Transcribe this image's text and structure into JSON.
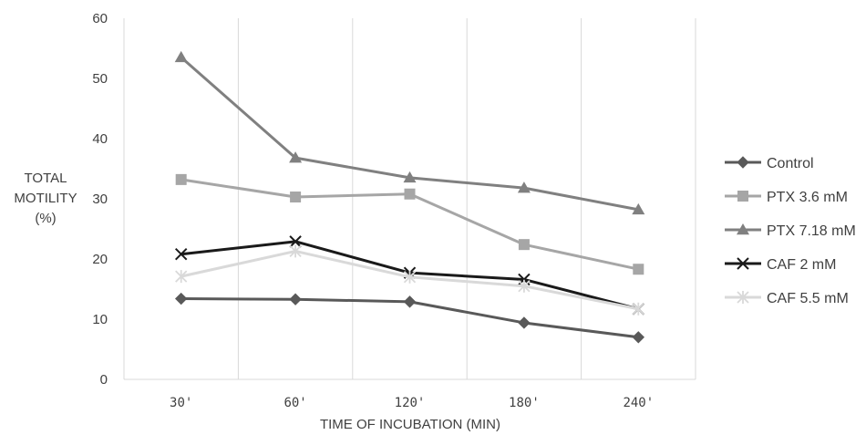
{
  "chart_data": {
    "type": "line",
    "categories": [
      "30'",
      "60'",
      "120'",
      "180'",
      "240'"
    ],
    "ylabel": [
      "TOTAL",
      "MOTILITY",
      "(%)"
    ],
    "xlabel": "TIME OF INCUBATION (MIN)",
    "ylim": [
      0,
      60
    ],
    "yticks": [
      0,
      10,
      20,
      30,
      40,
      50,
      60
    ],
    "grid": "vertical lines between categories",
    "legend_position": "right",
    "series": [
      {
        "name": "Control",
        "values": [
          13.4,
          13.3,
          12.9,
          9.4,
          7.0
        ],
        "color": "#595959",
        "marker": "diamond"
      },
      {
        "name": "PTX 3.6 mM",
        "values": [
          33.2,
          30.3,
          30.8,
          22.4,
          18.3
        ],
        "color": "#a6a6a6",
        "marker": "square"
      },
      {
        "name": "PTX 7.18 mM",
        "values": [
          53.5,
          36.8,
          33.5,
          31.8,
          28.2
        ],
        "color": "#808080",
        "marker": "triangle"
      },
      {
        "name": "CAF 2 mM",
        "values": [
          20.8,
          22.9,
          17.7,
          16.6,
          11.7
        ],
        "color": "#1a1a1a",
        "marker": "x"
      },
      {
        "name": "CAF 5.5 mM",
        "values": [
          17.1,
          21.3,
          17.0,
          15.5,
          11.7
        ],
        "color": "#d9d9d9",
        "marker": "star"
      }
    ]
  }
}
